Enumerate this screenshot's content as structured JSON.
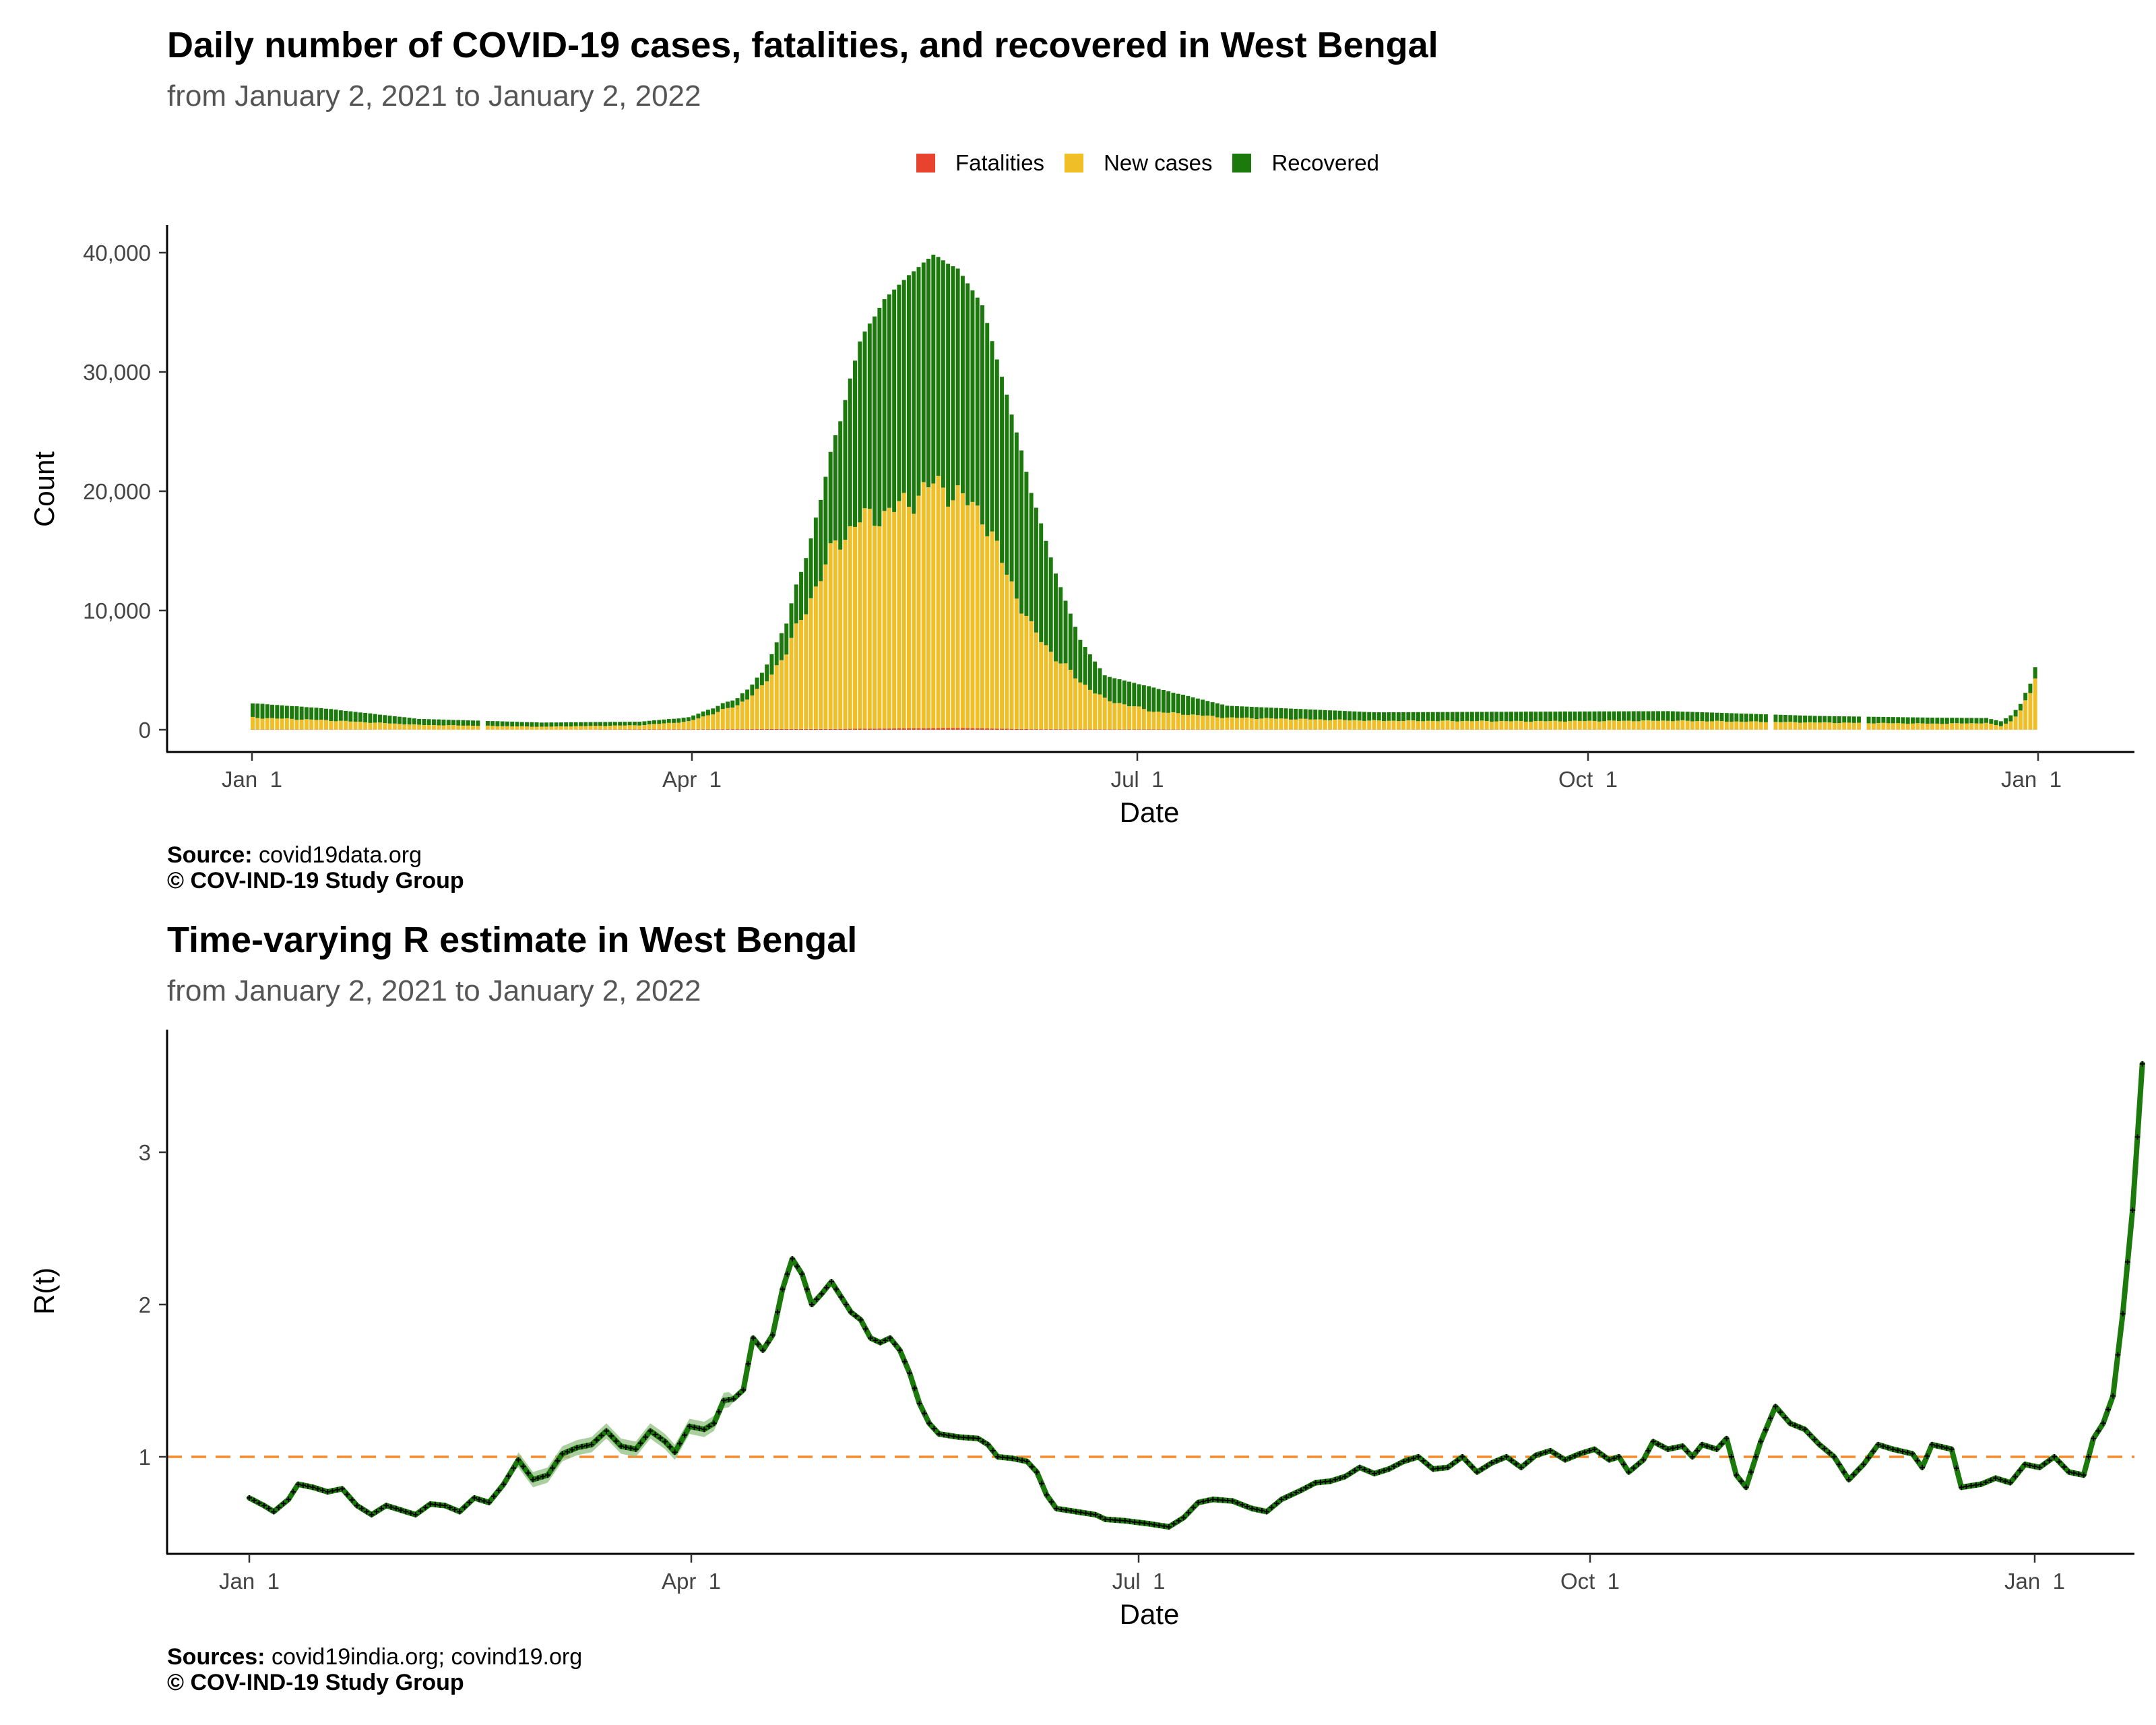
{
  "colors": {
    "fatalities": "#E8432E",
    "new_cases": "#F0BE27",
    "recovered": "#1C7A0C",
    "r_line": "#1C7A0C",
    "r_band": "#8FBF7F",
    "reference": "#F58A2C"
  },
  "chart_data": [
    {
      "type": "bar",
      "stacked": true,
      "title": "Daily number of COVID-19 cases, fatalities, and recovered in West Bengal",
      "subtitle": "from January  2, 2021 to January  2, 2022",
      "xlabel": "Date",
      "ylabel": "Count",
      "x_ticks": [
        "Jan  1",
        "Apr  1",
        "Jul  1",
        "Oct  1",
        "Jan  1"
      ],
      "y_ticks": [
        "0",
        "10,000",
        "20,000",
        "30,000",
        "40,000"
      ],
      "ylim": [
        0,
        42000
      ],
      "legend": {
        "position": "top",
        "entries": [
          "Fatalities",
          "New cases",
          "Recovered"
        ]
      },
      "grid": false,
      "series": [
        {
          "name": "Fatalities",
          "color": "#E8432E",
          "points": [
            [
              1,
              20
            ],
            [
              60,
              5
            ],
            [
              120,
              70
            ],
            [
              145,
              150
            ],
            [
              160,
              50
            ],
            [
              200,
              15
            ],
            [
              365,
              10
            ]
          ]
        },
        {
          "name": "New cases",
          "color": "#F0BE27",
          "points": [
            [
              1,
              1000
            ],
            [
              15,
              800
            ],
            [
              35,
              400
            ],
            [
              60,
              250
            ],
            [
              80,
              350
            ],
            [
              90,
              650
            ],
            [
              100,
              2000
            ],
            [
              105,
              3500
            ],
            [
              110,
              6500
            ],
            [
              115,
              11000
            ],
            [
              120,
              15500
            ],
            [
              125,
              17500
            ],
            [
              130,
              18000
            ],
            [
              135,
              19000
            ],
            [
              140,
              20500
            ],
            [
              145,
              19500
            ],
            [
              150,
              18000
            ],
            [
              155,
              13000
            ],
            [
              160,
              8500
            ],
            [
              165,
              6000
            ],
            [
              170,
              4000
            ],
            [
              175,
              2500
            ],
            [
              185,
              1500
            ],
            [
              200,
              1000
            ],
            [
              230,
              750
            ],
            [
              260,
              700
            ],
            [
              290,
              750
            ],
            [
              320,
              600
            ],
            [
              345,
              500
            ],
            [
              355,
              550
            ],
            [
              358,
              300
            ],
            [
              360,
              700
            ],
            [
              362,
              1600
            ],
            [
              364,
              3000
            ],
            [
              365,
              4500
            ]
          ]
        },
        {
          "name": "Recovered",
          "color": "#1C7A0C",
          "points": [
            [
              1,
              1200
            ],
            [
              15,
              1000
            ],
            [
              35,
              500
            ],
            [
              60,
              350
            ],
            [
              80,
              300
            ],
            [
              90,
              350
            ],
            [
              100,
              600
            ],
            [
              105,
              1100
            ],
            [
              110,
              2500
            ],
            [
              115,
              5000
            ],
            [
              120,
              9000
            ],
            [
              125,
              15000
            ],
            [
              130,
              18000
            ],
            [
              135,
              19000
            ],
            [
              140,
              19200
            ],
            [
              145,
              19000
            ],
            [
              150,
              17500
            ],
            [
              155,
              15000
            ],
            [
              160,
              11500
            ],
            [
              165,
              7000
            ],
            [
              170,
              3500
            ],
            [
              175,
              2000
            ],
            [
              185,
              2000
            ],
            [
              200,
              1000
            ],
            [
              230,
              700
            ],
            [
              260,
              800
            ],
            [
              290,
              800
            ],
            [
              320,
              550
            ],
            [
              345,
              500
            ],
            [
              358,
              400
            ],
            [
              360,
              500
            ],
            [
              362,
              550
            ],
            [
              364,
              800
            ],
            [
              365,
              900
            ]
          ]
        }
      ]
    },
    {
      "type": "line",
      "title": "Time-varying R estimate in West Bengal",
      "subtitle": "from January  2, 2021 to January  2, 2022",
      "xlabel": "Date",
      "ylabel": "R(t)",
      "x_ticks": [
        "Jan  1",
        "Apr  1",
        "Jul  1",
        "Oct  1",
        "Jan  1"
      ],
      "y_ticks": [
        "1",
        "2",
        "3"
      ],
      "ylim": [
        0.36,
        3.8
      ],
      "reference_line": 1,
      "grid": false,
      "series": [
        {
          "name": "",
          "points": [
            [
              1,
              0.73
            ],
            [
              4,
              0.68
            ],
            [
              6,
              0.64
            ],
            [
              9,
              0.72
            ],
            [
              11,
              0.82
            ],
            [
              14,
              0.8
            ],
            [
              17,
              0.77
            ],
            [
              20,
              0.79
            ],
            [
              23,
              0.68
            ],
            [
              26,
              0.62
            ],
            [
              29,
              0.68
            ],
            [
              32,
              0.65
            ],
            [
              35,
              0.62
            ],
            [
              38,
              0.69
            ],
            [
              41,
              0.68
            ],
            [
              44,
              0.64
            ],
            [
              47,
              0.73
            ],
            [
              50,
              0.7
            ],
            [
              53,
              0.82
            ],
            [
              56,
              0.98
            ],
            [
              59,
              0.85
            ],
            [
              62,
              0.88
            ],
            [
              65,
              1.02
            ],
            [
              68,
              1.06
            ],
            [
              71,
              1.08
            ],
            [
              74,
              1.17
            ],
            [
              77,
              1.07
            ],
            [
              80,
              1.05
            ],
            [
              83,
              1.17
            ],
            [
              86,
              1.1
            ],
            [
              88,
              1.03
            ],
            [
              91,
              1.2
            ],
            [
              94,
              1.18
            ],
            [
              96,
              1.22
            ],
            [
              98,
              1.37
            ],
            [
              100,
              1.38
            ],
            [
              102,
              1.44
            ],
            [
              104,
              1.78
            ],
            [
              106,
              1.7
            ],
            [
              108,
              1.8
            ],
            [
              110,
              2.1
            ],
            [
              112,
              2.3
            ],
            [
              114,
              2.2
            ],
            [
              116,
              2.0
            ],
            [
              118,
              2.07
            ],
            [
              120,
              2.15
            ],
            [
              122,
              2.05
            ],
            [
              124,
              1.95
            ],
            [
              126,
              1.9
            ],
            [
              128,
              1.78
            ],
            [
              130,
              1.75
            ],
            [
              132,
              1.78
            ],
            [
              134,
              1.7
            ],
            [
              136,
              1.55
            ],
            [
              138,
              1.35
            ],
            [
              140,
              1.22
            ],
            [
              142,
              1.15
            ],
            [
              146,
              1.13
            ],
            [
              150,
              1.12
            ],
            [
              152,
              1.08
            ],
            [
              154,
              1.0
            ],
            [
              157,
              0.99
            ],
            [
              160,
              0.97
            ],
            [
              162,
              0.9
            ],
            [
              164,
              0.75
            ],
            [
              166,
              0.66
            ],
            [
              170,
              0.64
            ],
            [
              174,
              0.62
            ],
            [
              176,
              0.59
            ],
            [
              180,
              0.58
            ],
            [
              185,
              0.56
            ],
            [
              189,
              0.54
            ],
            [
              192,
              0.6
            ],
            [
              195,
              0.7
            ],
            [
              198,
              0.72
            ],
            [
              202,
              0.71
            ],
            [
              206,
              0.66
            ],
            [
              209,
              0.64
            ],
            [
              212,
              0.72
            ],
            [
              216,
              0.78
            ],
            [
              219,
              0.83
            ],
            [
              222,
              0.84
            ],
            [
              225,
              0.87
            ],
            [
              228,
              0.93
            ],
            [
              231,
              0.89
            ],
            [
              234,
              0.92
            ],
            [
              237,
              0.97
            ],
            [
              240,
              1.0
            ],
            [
              243,
              0.92
            ],
            [
              246,
              0.93
            ],
            [
              249,
              1.0
            ],
            [
              252,
              0.9
            ],
            [
              255,
              0.96
            ],
            [
              258,
              1.0
            ],
            [
              261,
              0.93
            ],
            [
              264,
              1.01
            ],
            [
              267,
              1.04
            ],
            [
              270,
              0.98
            ],
            [
              273,
              1.02
            ],
            [
              276,
              1.05
            ],
            [
              279,
              0.98
            ],
            [
              281,
              1.0
            ],
            [
              283,
              0.9
            ],
            [
              286,
              0.98
            ],
            [
              288,
              1.1
            ],
            [
              291,
              1.05
            ],
            [
              294,
              1.07
            ],
            [
              296,
              1.0
            ],
            [
              298,
              1.08
            ],
            [
              301,
              1.05
            ],
            [
              303,
              1.12
            ],
            [
              305,
              0.88
            ],
            [
              307,
              0.8
            ],
            [
              310,
              1.1
            ],
            [
              313,
              1.33
            ],
            [
              316,
              1.22
            ],
            [
              319,
              1.18
            ],
            [
              322,
              1.08
            ],
            [
              325,
              1.0
            ],
            [
              328,
              0.85
            ],
            [
              331,
              0.95
            ],
            [
              334,
              1.08
            ],
            [
              337,
              1.05
            ],
            [
              341,
              1.02
            ],
            [
              343,
              0.93
            ],
            [
              345,
              1.08
            ],
            [
              349,
              1.05
            ],
            [
              351,
              0.8
            ],
            [
              355,
              0.82
            ],
            [
              358,
              0.86
            ],
            [
              361,
              0.83
            ],
            [
              364,
              0.95
            ],
            [
              367,
              0.93
            ],
            [
              370,
              1.0
            ],
            [
              373,
              0.9
            ],
            [
              376,
              0.88
            ],
            [
              378,
              1.12
            ],
            [
              380,
              1.22
            ],
            [
              382,
              1.4
            ],
            [
              384,
              1.94
            ],
            [
              386,
              2.62
            ],
            [
              388,
              3.58
            ]
          ]
        }
      ]
    }
  ],
  "captions": [
    {
      "label": "Source:",
      "text": " covid19data.org",
      "copyright": "© COV-IND-19 Study Group"
    },
    {
      "label": "Sources:",
      "text": " covid19india.org; covind19.org",
      "copyright": "© COV-IND-19 Study Group"
    }
  ]
}
